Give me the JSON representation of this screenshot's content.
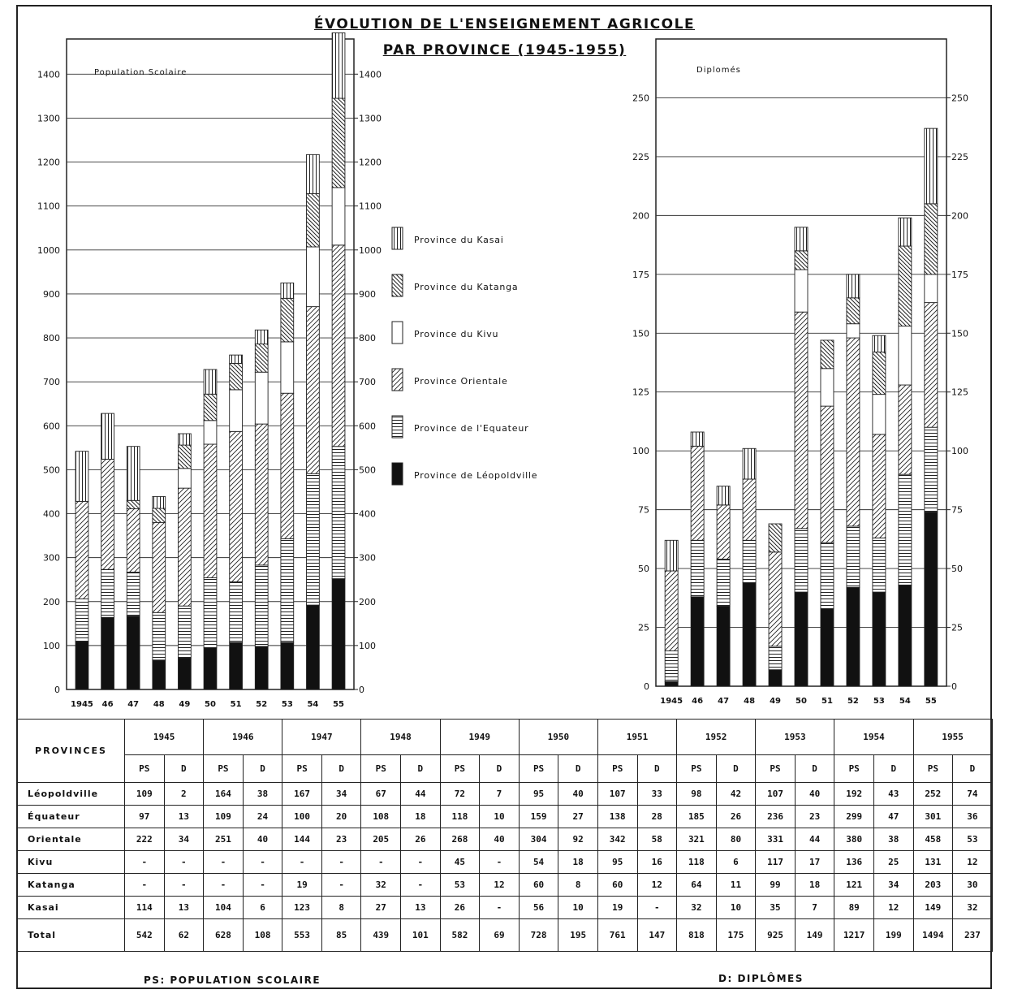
{
  "title_line1": "ÉVOLUTION DE L'ENSEIGNEMENT AGRICOLE",
  "title_line2": "PAR PROVINCE (1945-1955)",
  "legend": [
    {
      "key": "kasai",
      "label": "Province du Kasai",
      "pattern": "vertical"
    },
    {
      "key": "katanga",
      "label": "Province du Katanga",
      "pattern": "diag-back"
    },
    {
      "key": "kivu",
      "label": "Province du Kivu",
      "pattern": "blank"
    },
    {
      "key": "orientale",
      "label": "Province Orientale",
      "pattern": "diag-forward"
    },
    {
      "key": "equateur",
      "label": "Province de l'Equateur",
      "pattern": "horizontal"
    },
    {
      "key": "leopoldville",
      "label": "Province de Léopoldville",
      "pattern": "solid"
    }
  ],
  "chart_data": [
    {
      "type": "bar",
      "stacked": true,
      "title": "Population Scolaire",
      "categories": [
        "1945",
        "46",
        "47",
        "48",
        "49",
        "50",
        "51",
        "52",
        "53",
        "54",
        "55"
      ],
      "series": [
        {
          "name": "Province de Léopoldville",
          "key": "leopoldville",
          "values": [
            109,
            164,
            167,
            67,
            72,
            95,
            107,
            98,
            107,
            192,
            252
          ]
        },
        {
          "name": "Province de l'Equateur",
          "key": "equateur",
          "values": [
            97,
            109,
            100,
            108,
            118,
            159,
            138,
            185,
            236,
            299,
            301
          ]
        },
        {
          "name": "Province Orientale",
          "key": "orientale",
          "values": [
            222,
            251,
            144,
            205,
            268,
            304,
            342,
            321,
            331,
            380,
            458
          ]
        },
        {
          "name": "Province du Kivu",
          "key": "kivu",
          "values": [
            0,
            0,
            0,
            0,
            45,
            54,
            95,
            118,
            117,
            136,
            131
          ]
        },
        {
          "name": "Province du Katanga",
          "key": "katanga",
          "values": [
            0,
            0,
            19,
            32,
            53,
            60,
            60,
            64,
            99,
            121,
            203
          ]
        },
        {
          "name": "Province du Kasai",
          "key": "kasai",
          "values": [
            114,
            104,
            123,
            27,
            26,
            56,
            19,
            32,
            35,
            89,
            149
          ]
        }
      ],
      "ylim": [
        0,
        1480
      ],
      "yticks": [
        0,
        100,
        200,
        300,
        400,
        500,
        600,
        700,
        800,
        900,
        1000,
        1100,
        1200,
        1300,
        1400
      ],
      "grid": true
    },
    {
      "type": "bar",
      "stacked": true,
      "title": "Diplomés",
      "categories": [
        "1945",
        "46",
        "47",
        "48",
        "49",
        "50",
        "51",
        "52",
        "53",
        "54",
        "55"
      ],
      "series": [
        {
          "name": "Province de Léopoldville",
          "key": "leopoldville",
          "values": [
            2,
            38,
            34,
            44,
            7,
            40,
            33,
            42,
            40,
            43,
            74
          ]
        },
        {
          "name": "Province de l'Equateur",
          "key": "equateur",
          "values": [
            13,
            24,
            20,
            18,
            10,
            27,
            28,
            26,
            23,
            47,
            36
          ]
        },
        {
          "name": "Province Orientale",
          "key": "orientale",
          "values": [
            34,
            40,
            23,
            26,
            40,
            92,
            58,
            80,
            44,
            38,
            53
          ]
        },
        {
          "name": "Province du Kivu",
          "key": "kivu",
          "values": [
            0,
            0,
            0,
            0,
            0,
            18,
            16,
            6,
            17,
            25,
            12
          ]
        },
        {
          "name": "Province du Katanga",
          "key": "katanga",
          "values": [
            0,
            0,
            0,
            0,
            12,
            8,
            12,
            11,
            18,
            34,
            30
          ]
        },
        {
          "name": "Province du Kasai",
          "key": "kasai",
          "values": [
            13,
            6,
            8,
            13,
            0,
            10,
            0,
            10,
            7,
            12,
            32
          ]
        }
      ],
      "ylim": [
        0,
        275
      ],
      "yticks": [
        0,
        25,
        50,
        75,
        100,
        125,
        150,
        175,
        200,
        225,
        250
      ],
      "grid": true
    }
  ],
  "table": {
    "corner_label": "PROVINCES",
    "years": [
      "1945",
      "1946",
      "1947",
      "1948",
      "1949",
      "1950",
      "1951",
      "1952",
      "1953",
      "1954",
      "1955"
    ],
    "sub_ps": "PS",
    "sub_d": "D",
    "rows": [
      {
        "label": "Léopoldville",
        "cells": [
          "109",
          "2",
          "164",
          "38",
          "167",
          "34",
          "67",
          "44",
          "72",
          "7",
          "95",
          "40",
          "107",
          "33",
          "98",
          "42",
          "107",
          "40",
          "192",
          "43",
          "252",
          "74"
        ]
      },
      {
        "label": "Équateur",
        "cells": [
          "97",
          "13",
          "109",
          "24",
          "100",
          "20",
          "108",
          "18",
          "118",
          "10",
          "159",
          "27",
          "138",
          "28",
          "185",
          "26",
          "236",
          "23",
          "299",
          "47",
          "301",
          "36"
        ]
      },
      {
        "label": "Orientale",
        "cells": [
          "222",
          "34",
          "251",
          "40",
          "144",
          "23",
          "205",
          "26",
          "268",
          "40",
          "304",
          "92",
          "342",
          "58",
          "321",
          "80",
          "331",
          "44",
          "380",
          "38",
          "458",
          "53"
        ]
      },
      {
        "label": "Kivu",
        "cells": [
          "-",
          "-",
          "-",
          "-",
          "-",
          "-",
          "-",
          "-",
          "45",
          "-",
          "54",
          "18",
          "95",
          "16",
          "118",
          "6",
          "117",
          "17",
          "136",
          "25",
          "131",
          "12"
        ]
      },
      {
        "label": "Katanga",
        "cells": [
          "-",
          "-",
          "-",
          "-",
          "19",
          "-",
          "32",
          "-",
          "53",
          "12",
          "60",
          "8",
          "60",
          "12",
          "64",
          "11",
          "99",
          "18",
          "121",
          "34",
          "203",
          "30"
        ]
      },
      {
        "label": "Kasai",
        "cells": [
          "114",
          "13",
          "104",
          "6",
          "123",
          "8",
          "27",
          "13",
          "26",
          "-",
          "56",
          "10",
          "19",
          "-",
          "32",
          "10",
          "35",
          "7",
          "89",
          "12",
          "149",
          "32"
        ]
      },
      {
        "label": "Total",
        "cells": [
          "542",
          "62",
          "628",
          "108",
          "553",
          "85",
          "439",
          "101",
          "582",
          "69",
          "728",
          "195",
          "761",
          "147",
          "818",
          "175",
          "925",
          "149",
          "1217",
          "199",
          "1494",
          "237"
        ]
      }
    ]
  },
  "footnote_ps": "PS: POPULATION SCOLAIRE",
  "footnote_d": "D: DIPLÔMES"
}
